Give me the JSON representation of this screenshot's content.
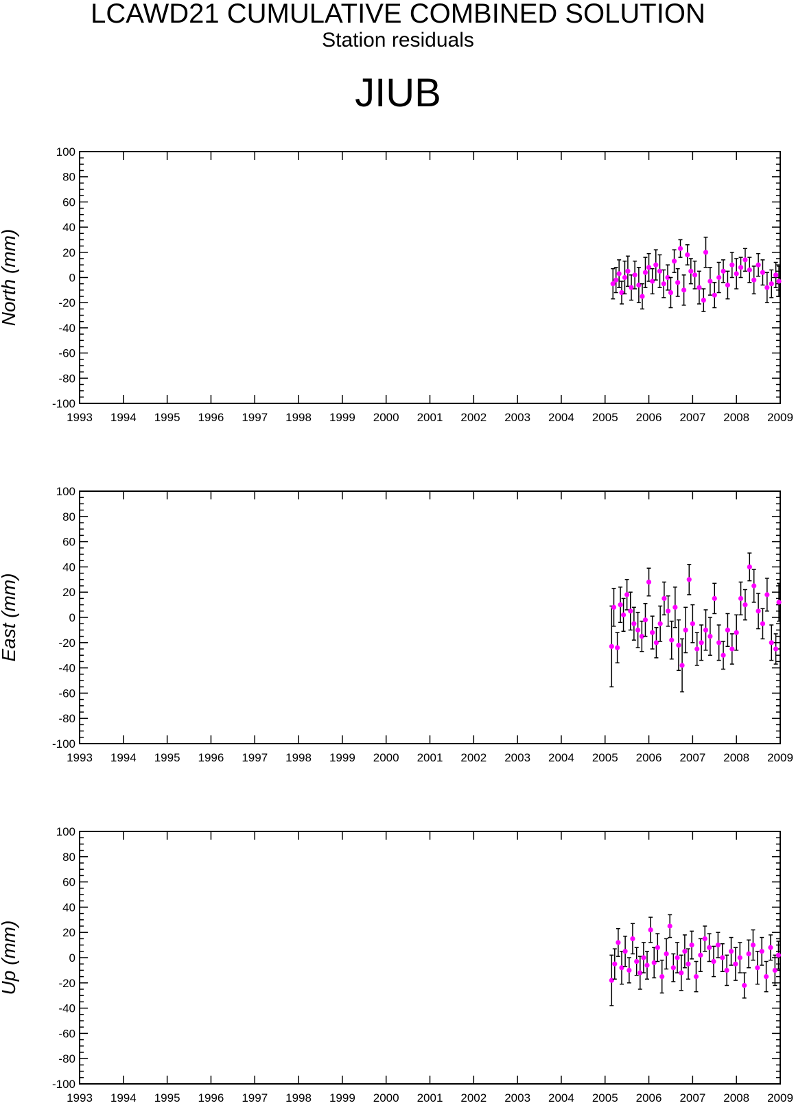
{
  "header": {
    "title": "LCAWD21 CUMULATIVE COMBINED SOLUTION",
    "subtitle": "Station residuals",
    "station": "JIUB"
  },
  "chart_data": [
    {
      "type": "scatter",
      "ylabel": "North (mm)",
      "xlim": [
        1993,
        2009
      ],
      "ylim": [
        -100,
        100
      ],
      "x_ticks": [
        "1993",
        "1994",
        "1995",
        "1996",
        "1997",
        "1998",
        "1999",
        "2000",
        "2001",
        "2002",
        "2003",
        "2004",
        "2005",
        "2006",
        "2007",
        "2008",
        "2009"
      ],
      "y_ticks": [
        "100",
        "80",
        "60",
        "40",
        "20",
        "0",
        "-20",
        "-40",
        "-60",
        "-80",
        "-100"
      ],
      "marker_color": "#ff00ff",
      "errorbar_color": "#000000",
      "grid": false,
      "x": [
        2005.18,
        2005.25,
        2005.32,
        2005.38,
        2005.45,
        2005.52,
        2005.6,
        2005.68,
        2005.77,
        2005.85,
        2005.92,
        2006.0,
        2006.08,
        2006.16,
        2006.25,
        2006.34,
        2006.43,
        2006.5,
        2006.58,
        2006.66,
        2006.72,
        2006.8,
        2006.88,
        2006.96,
        2007.05,
        2007.15,
        2007.25,
        2007.3,
        2007.4,
        2007.5,
        2007.6,
        2007.7,
        2007.8,
        2007.9,
        2008.0,
        2008.1,
        2008.2,
        2008.3,
        2008.4,
        2008.5,
        2008.6,
        2008.7,
        2008.8,
        2008.9,
        2008.97
      ],
      "y": [
        -5,
        -2,
        3,
        -12,
        0,
        5,
        -8,
        2,
        -6,
        -15,
        4,
        8,
        -3,
        10,
        5,
        -5,
        0,
        -12,
        13,
        -4,
        23,
        -10,
        18,
        5,
        2,
        -8,
        -18,
        20,
        -3,
        -14,
        0,
        5,
        -6,
        10,
        3,
        8,
        14,
        6,
        -2,
        10,
        4,
        -8,
        -5,
        2,
        -3
      ],
      "y_error": [
        12,
        10,
        11,
        9,
        13,
        12,
        10,
        11,
        14,
        10,
        12,
        11,
        10,
        12,
        13,
        11,
        10,
        12,
        9,
        11,
        7,
        12,
        8,
        10,
        11,
        13,
        9,
        12,
        11,
        10,
        12,
        9,
        11,
        10,
        12,
        8,
        9,
        10,
        11,
        9,
        10,
        12,
        11,
        10,
        12
      ]
    },
    {
      "type": "scatter",
      "ylabel": "East (mm)",
      "xlim": [
        1993,
        2009
      ],
      "ylim": [
        -100,
        100
      ],
      "x_ticks": [
        "1993",
        "1994",
        "1995",
        "1996",
        "1997",
        "1998",
        "1999",
        "2000",
        "2001",
        "2002",
        "2003",
        "2004",
        "2005",
        "2006",
        "2007",
        "2008",
        "2009"
      ],
      "y_ticks": [
        "100",
        "80",
        "60",
        "40",
        "20",
        "0",
        "-20",
        "-40",
        "-60",
        "-80",
        "-100"
      ],
      "marker_color": "#ff00ff",
      "errorbar_color": "#000000",
      "grid": false,
      "x": [
        2005.15,
        2005.2,
        2005.28,
        2005.35,
        2005.42,
        2005.5,
        2005.58,
        2005.66,
        2005.75,
        2005.84,
        2005.92,
        2006.0,
        2006.08,
        2006.17,
        2006.26,
        2006.35,
        2006.44,
        2006.52,
        2006.6,
        2006.68,
        2006.76,
        2006.84,
        2006.92,
        2007.0,
        2007.1,
        2007.2,
        2007.3,
        2007.4,
        2007.5,
        2007.6,
        2007.7,
        2007.8,
        2007.9,
        2008.0,
        2008.1,
        2008.2,
        2008.3,
        2008.4,
        2008.5,
        2008.6,
        2008.7,
        2008.8,
        2008.9,
        2008.97
      ],
      "y": [
        -23,
        8,
        -24,
        10,
        2,
        18,
        5,
        -5,
        -10,
        -15,
        -2,
        28,
        -12,
        -20,
        -5,
        15,
        5,
        -18,
        8,
        -22,
        -38,
        -10,
        30,
        -5,
        -25,
        -20,
        -10,
        -15,
        15,
        -20,
        -30,
        -10,
        -25,
        -12,
        15,
        10,
        40,
        25,
        5,
        -5,
        18,
        -20,
        -25,
        12
      ],
      "y_error": [
        32,
        15,
        12,
        14,
        13,
        12,
        15,
        13,
        14,
        12,
        13,
        11,
        13,
        12,
        14,
        13,
        12,
        15,
        16,
        20,
        21,
        18,
        12,
        15,
        13,
        14,
        16,
        15,
        12,
        14,
        11,
        13,
        12,
        14,
        13,
        12,
        11,
        13,
        14,
        12,
        13,
        14,
        12,
        15
      ]
    },
    {
      "type": "scatter",
      "ylabel": "Up (mm)",
      "xlim": [
        1993,
        2009
      ],
      "ylim": [
        -100,
        100
      ],
      "x_ticks": [
        "1993",
        "1994",
        "1995",
        "1996",
        "1997",
        "1998",
        "1999",
        "2000",
        "2001",
        "2002",
        "2003",
        "2004",
        "2005",
        "2006",
        "2007",
        "2008",
        "2009"
      ],
      "y_ticks": [
        "100",
        "80",
        "60",
        "40",
        "20",
        "0",
        "-20",
        "-40",
        "-60",
        "-80",
        "-100"
      ],
      "marker_color": "#ff00ff",
      "errorbar_color": "#000000",
      "grid": false,
      "x": [
        2005.15,
        2005.22,
        2005.3,
        2005.38,
        2005.46,
        2005.55,
        2005.63,
        2005.72,
        2005.8,
        2005.88,
        2005.96,
        2006.04,
        2006.12,
        2006.2,
        2006.3,
        2006.4,
        2006.48,
        2006.56,
        2006.65,
        2006.74,
        2006.82,
        2006.9,
        2006.98,
        2007.08,
        2007.18,
        2007.28,
        2007.38,
        2007.48,
        2007.58,
        2007.68,
        2007.78,
        2007.88,
        2007.98,
        2008.08,
        2008.18,
        2008.28,
        2008.38,
        2008.48,
        2008.58,
        2008.68,
        2008.78,
        2008.88,
        2008.96
      ],
      "y": [
        -18,
        -5,
        12,
        -8,
        5,
        -10,
        15,
        -3,
        -12,
        0,
        -6,
        22,
        -4,
        8,
        -15,
        3,
        25,
        -8,
        0,
        -12,
        5,
        -5,
        10,
        -15,
        2,
        15,
        8,
        -3,
        10,
        0,
        -10,
        5,
        -5,
        0,
        -22,
        3,
        10,
        -8,
        5,
        -15,
        8,
        -10,
        2
      ],
      "y_error": [
        20,
        12,
        11,
        13,
        12,
        10,
        12,
        11,
        13,
        12,
        11,
        10,
        12,
        11,
        13,
        12,
        9,
        11,
        12,
        14,
        13,
        12,
        11,
        12,
        13,
        10,
        11,
        12,
        10,
        11,
        12,
        11,
        13,
        12,
        10,
        11,
        12,
        13,
        11,
        12,
        10,
        12,
        11
      ]
    }
  ]
}
